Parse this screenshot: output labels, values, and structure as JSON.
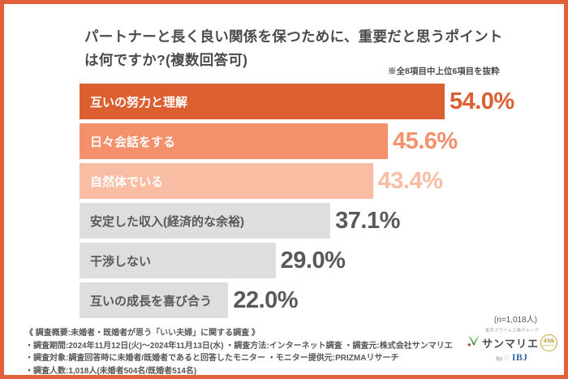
{
  "header": {
    "title_line1": "パートナーと長く良い関係を保つために、重要だと思うポイント",
    "title_line2": "は何ですか?(複数回答可)",
    "note": "※全8項目中上位6項目を抜粋"
  },
  "chart_data": {
    "type": "bar",
    "orientation": "horizontal",
    "title": "パートナーと長く良い関係を保つために、重要だと思うポイントは何ですか?(複数回答可)",
    "note": "※全8項目中上位6項目を抜粋",
    "n_label": "(n=1,018人)",
    "unit": "%",
    "xlim": [
      0,
      60
    ],
    "categories": [
      "互いの努力と理解",
      "日々会話をする",
      "自然体でいる",
      "安定した収入(経済的な余裕)",
      "干渉しない",
      "互いの成長を喜び合う"
    ],
    "values": [
      54.0,
      45.6,
      43.4,
      37.1,
      29.0,
      22.0
    ],
    "bar_colors": [
      "#DC5F31",
      "#F4906B",
      "#F9BDA4",
      "#DEDEDE",
      "#DEDEDE",
      "#DEDEDE"
    ],
    "category_label_colors": [
      "#FFFFFF",
      "#FFFFFF",
      "#FFFFFF",
      "#595959",
      "#595959",
      "#595959"
    ],
    "value_label_colors": [
      "#DC5F31",
      "#F4906B",
      "#F9BDA4",
      "#595959",
      "#595959",
      "#595959"
    ],
    "legend": false,
    "grid": false
  },
  "footer": {
    "lines": [
      "《 調査概要:未婚者・既婚者が思う「いい夫婦」に関する調査 》",
      "・調査期間:2024年11月12日(火)〜2024年11月13日(水) ・調査方法:インターネット調査  ・調査元:株式会社サンマリエ",
      "・調査対象:調査回答時に未婚者/既婚者であると回答したモニター ・モニター提供元:PRIZMAリサーチ",
      "・調査人数:1,018人(未婚者504名/既婚者514名)"
    ]
  },
  "logo": {
    "group_label": "東京プライム上場グループ",
    "brand": "サンマリエ",
    "badge_line1": "43th",
    "badge_line2": "anniversary",
    "by": "by",
    "ibj": "IBJ"
  },
  "colors": {
    "accent": "#DC5F31",
    "frame_border": "#E2603A",
    "title_text": "#4B4B4B",
    "muted_text": "#595959"
  }
}
